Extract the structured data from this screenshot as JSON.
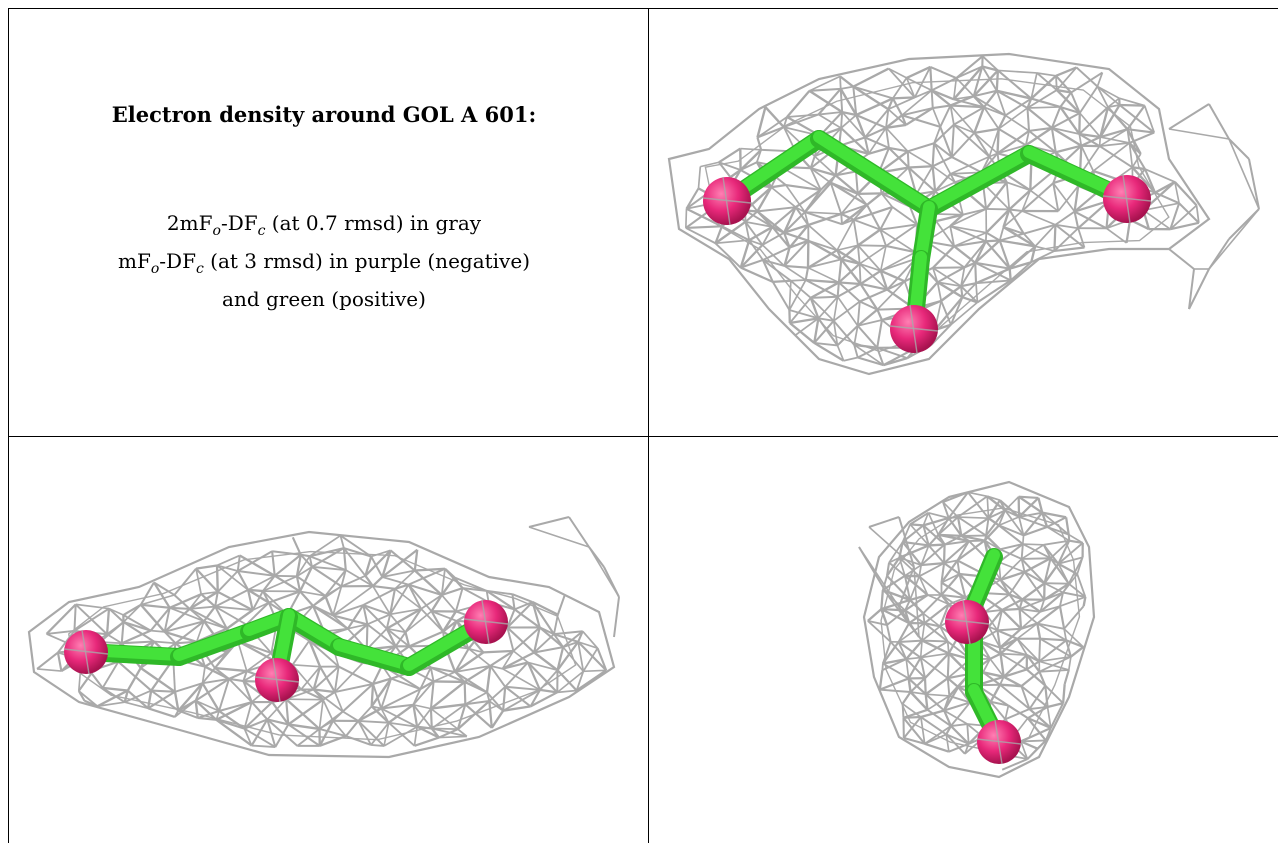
{
  "caption": {
    "title": "Electron density around GOL A 601:",
    "line1": {
      "a": "2mF",
      "o": "o",
      "b": "-DF",
      "c": "c",
      "d": " (at 0.7 rmsd) in gray"
    },
    "line2": {
      "a": "mF",
      "o": "o",
      "b": "-DF",
      "c": "c",
      "d": " (at 3 rmsd) in purple (negative)"
    },
    "line3": "and green (positive)"
  },
  "colors": {
    "mesh": "#a9a9a9",
    "bond": "#44e23a",
    "bond_dark": "#2fb828",
    "oxygen": "#e8287a",
    "oxygen_dark": "#a8124f",
    "border": "#000000"
  },
  "views": [
    {
      "name": "view-top-right",
      "icon": "mesh-molecule-icon"
    },
    {
      "name": "view-bottom-left",
      "icon": "mesh-molecule-icon"
    },
    {
      "name": "view-bottom-right",
      "icon": "mesh-molecule-icon"
    }
  ]
}
